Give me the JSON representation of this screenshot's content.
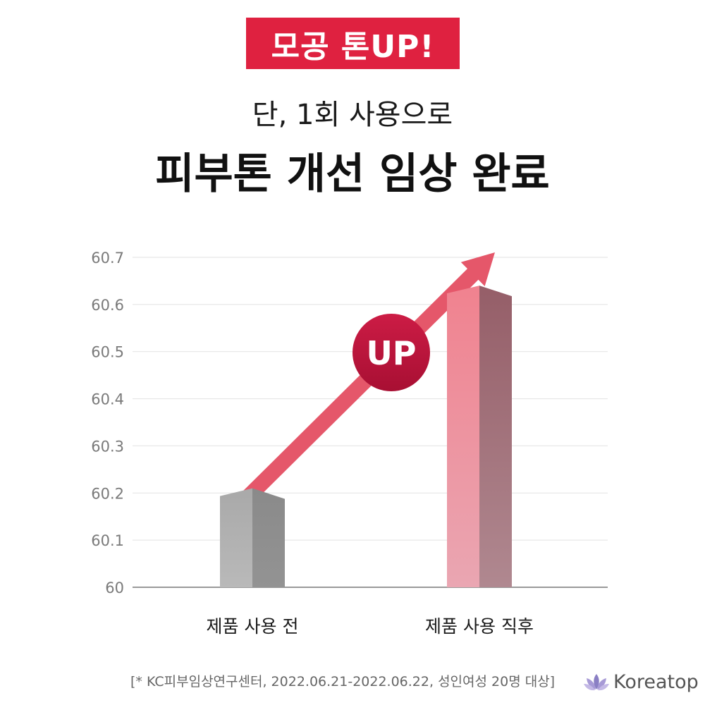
{
  "badge": "모공 톤UP!",
  "subtitle": "단, 1회 사용으로",
  "title": "피부톤 개선 임상 완료",
  "up_label": "UP",
  "footnote": "[* KC피부임상연구센터, 2022.06.21-2022.06.22, 성인여성 20명 대상]",
  "brand": {
    "name": "Koreatop",
    "logo_icon": "lotus-icon"
  },
  "colors": {
    "badge": "#df2140",
    "up_circle": "#b8123a",
    "arrow": "#e5576a",
    "bar_before": "#a8a8a8",
    "bar_after": "#f08a96"
  },
  "chart_data": {
    "type": "bar",
    "categories": [
      "제품 사용 전",
      "제품 사용 직후"
    ],
    "values": [
      60.21,
      60.64
    ],
    "ylim": [
      60,
      60.7
    ],
    "yticks": [
      "60",
      "60.1",
      "60.2",
      "60.3",
      "60.4",
      "60.5",
      "60.6",
      "60.7"
    ],
    "grid": true,
    "annotation": "UP"
  }
}
